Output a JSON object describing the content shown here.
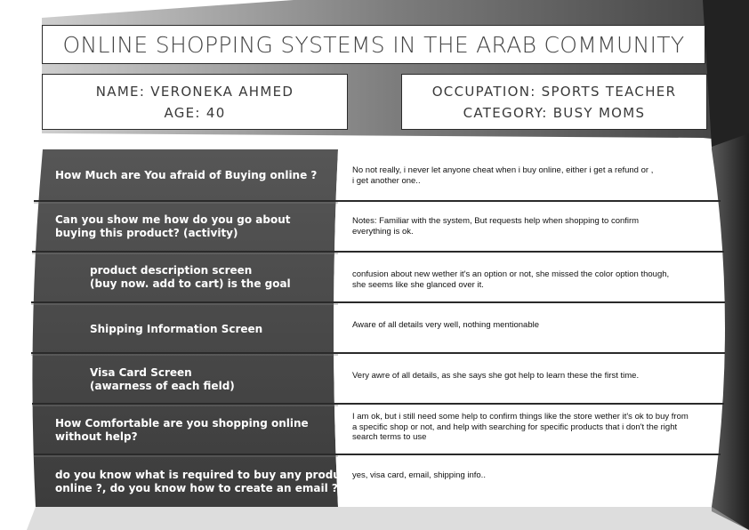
{
  "title": "ONLINE SHOPPING SYSTEMS IN THE ARAB COMMUNITY",
  "persona": {
    "name": "NAME: VERONEKA AHMED",
    "age": "AGE: 40",
    "occupation": "OCCUPATION: SPORTS TEACHER",
    "category": "CATEGORY: BUSY MOMS"
  },
  "rows": [
    {
      "question": [
        "How Much are You afraid of Buying online ?"
      ],
      "answer": [
        "No not really, i never let anyone cheat when i buy online, either i get a refund or ,",
        "i get another one.."
      ]
    },
    {
      "question": [
        "Can you show me how do you go about",
        "buying this product? (activity)"
      ],
      "answer": [
        "Notes: Familiar with the system, But requests help when shopping to confirm",
        "everything is ok."
      ]
    },
    {
      "question": [
        "product description screen",
        "(buy now. add to cart) is the goal"
      ],
      "answer": [
        "confusion about new wether it's an option or not, she missed the color option though,",
        "she seems like she glanced over it."
      ]
    },
    {
      "question": [
        "Shipping Information Screen"
      ],
      "answer": [
        "Aware of all details very well, nothing mentionable"
      ]
    },
    {
      "question": [
        "Visa Card Screen",
        "(awarness of each field)"
      ],
      "answer": [
        "Very awre of all details, as she says she got help to learn these the first time."
      ]
    },
    {
      "question": [
        "How Comfortable are you shopping online",
        "without help?"
      ],
      "answer": [
        "I am ok, but i still need some help to confirm things like the store wether it's ok to buy from",
        "a specific shop or not, and help with searching for specific products that i don't the right",
        "search terms to use"
      ]
    },
    {
      "question": [
        "do you know what is required to buy any product",
        "online ?, do you know how to create an email ?"
      ],
      "answer": [
        "yes, visa card, email, shipping info.."
      ]
    }
  ],
  "colors": {
    "dark": "#4a4a4a",
    "darker": "#2e2e2e",
    "light": "#ffffff"
  }
}
